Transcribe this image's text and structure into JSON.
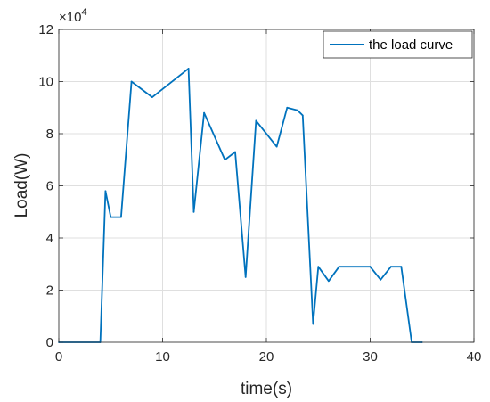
{
  "chart_data": {
    "type": "line",
    "xlabel": "time(s)",
    "ylabel": "Load(W)",
    "xlim": [
      0,
      40
    ],
    "ylim": [
      0,
      120000
    ],
    "xticks": [
      0,
      10,
      20,
      30,
      40
    ],
    "xtick_labels": [
      "0",
      "10",
      "20",
      "30",
      "40"
    ],
    "yticks": [
      0,
      20000,
      40000,
      60000,
      80000,
      100000,
      120000
    ],
    "ytick_labels": [
      "0",
      "2",
      "4",
      "6",
      "8",
      "10",
      "12"
    ],
    "y_exponent_label": "×10",
    "y_exponent_power": "4",
    "grid": true,
    "legend_position": "top-right",
    "series": [
      {
        "name": "the load curve",
        "color": "#0072BD",
        "x": [
          0,
          4,
          4.5,
          5,
          6,
          7,
          9,
          12.5,
          13,
          14,
          16,
          17,
          18,
          19,
          21,
          22,
          23,
          23.5,
          24.5,
          25,
          26,
          27,
          30,
          31,
          32,
          33,
          34,
          35
        ],
        "y": [
          0,
          0,
          58000,
          48000,
          48000,
          100000,
          94000,
          105000,
          50000,
          88000,
          70000,
          73000,
          25000,
          85000,
          75000,
          90000,
          89000,
          87000,
          7000,
          29000,
          23500,
          29000,
          29000,
          24000,
          29000,
          29000,
          0,
          0
        ]
      }
    ]
  }
}
